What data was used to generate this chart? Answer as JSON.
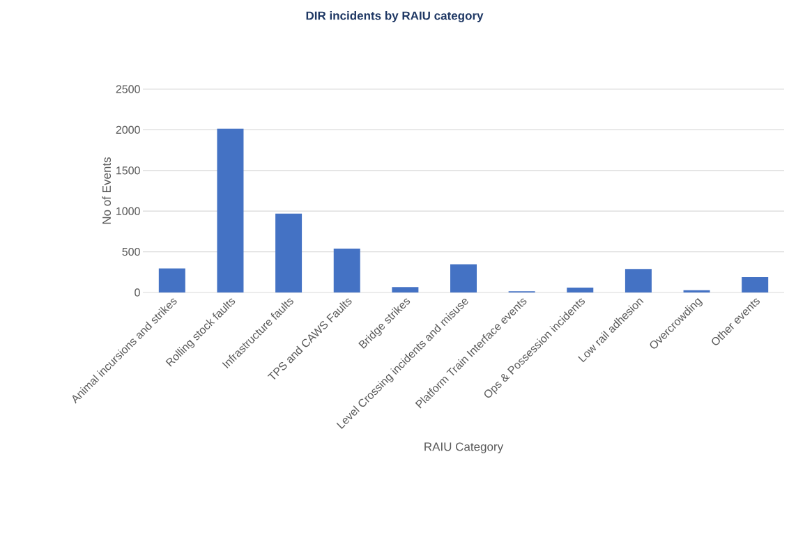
{
  "chart_data": {
    "type": "bar",
    "title": "DIR incidents by RAIU category",
    "xlabel": "RAIU Category",
    "ylabel": "No of Events",
    "categories": [
      "Animal incursions and strikes",
      "Rolling stock faults",
      "Infrastructure faults",
      "TPS and CAWS Faults",
      "Bridge strikes",
      "Level Crossing incidents and misuse",
      "Platform Train Interface events",
      "Ops  & Possession incidents",
      "Low rail adhesion",
      "Overcrowding",
      "Other events"
    ],
    "values": [
      296,
      2015,
      970,
      540,
      66,
      346,
      15,
      60,
      290,
      28,
      188
    ],
    "color": "#4472c4",
    "ylim": [
      0,
      2500
    ],
    "yticks": [
      0,
      500,
      1000,
      1500,
      2000,
      2500
    ],
    "grid": "y"
  }
}
